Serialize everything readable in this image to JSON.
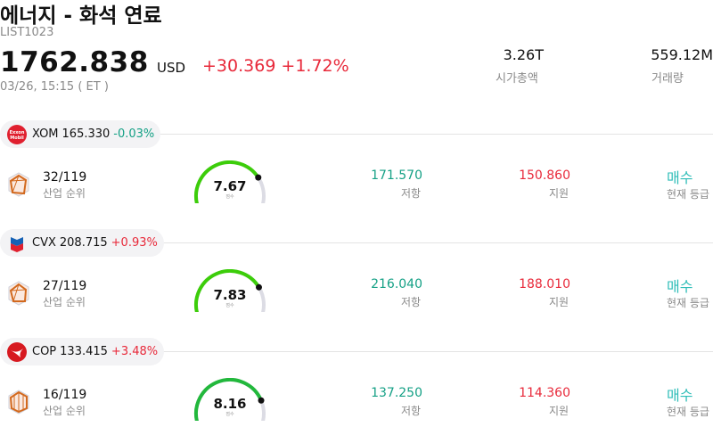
{
  "header": {
    "title": "에너지 - 화석 연료",
    "code": "LIST1023",
    "price": "1762.838",
    "currency": "USD",
    "change": "+30.369",
    "change_pct": "+1.72%",
    "timestamp": "03/26, 15:15 ( ET )",
    "market_cap_value": "3.26T",
    "market_cap_label": "시가총액",
    "volume_value": "559.12M",
    "volume_label": "거래량"
  },
  "colors": {
    "up": "#e8293a",
    "down": "#14a085",
    "signal": "#2fbdb8",
    "gauge_track": "#dcdce4"
  },
  "stocks": [
    {
      "ticker": "XOM",
      "price": "165.330",
      "change": "-0.03%",
      "logo": "exxonmobil-logo",
      "rank": "32/119",
      "rank_label": "산업 순위",
      "score": "7.67",
      "score_label": "점수",
      "score_fraction": 0.77,
      "gauge_color": "#3ccd0a",
      "resistance": "171.570",
      "resistance_label": "저항",
      "support": "150.860",
      "support_label": "지원",
      "signal": "매수",
      "signal_label": "현재 등급"
    },
    {
      "ticker": "CVX",
      "price": "208.715",
      "change": "+0.93%",
      "logo": "chevron-logo",
      "rank": "27/119",
      "rank_label": "산업 순위",
      "score": "7.83",
      "score_label": "점수",
      "score_fraction": 0.78,
      "gauge_color": "#3ccd0a",
      "resistance": "216.040",
      "resistance_label": "저항",
      "support": "188.010",
      "support_label": "지원",
      "signal": "매수",
      "signal_label": "현재 등급"
    },
    {
      "ticker": "COP",
      "price": "133.415",
      "change": "+3.48%",
      "logo": "conocophillips-logo",
      "rank": "16/119",
      "rank_label": "산업 순위",
      "score": "8.16",
      "score_label": "점수",
      "score_fraction": 0.82,
      "gauge_color": "#22b83c",
      "resistance": "137.250",
      "resistance_label": "저항",
      "support": "114.360",
      "support_label": "지원",
      "signal": "매수",
      "signal_label": "현재 등급"
    }
  ]
}
